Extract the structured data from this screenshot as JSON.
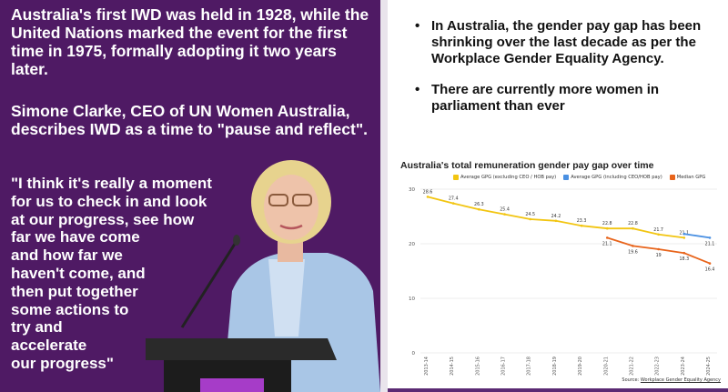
{
  "left": {
    "para1": "Australia's first IWD was held in 1928, while the United Nations marked the event for the first time in 1975, formally adopting it two years later.",
    "para2": "Simone Clarke, CEO of UN Women Australia, describes IWD as a time to \"pause and reflect\".",
    "quote_lines": [
      "\"I think it's really a moment",
      "for us to check in and look",
      "at our progress, see how",
      "far we have come",
      "and how far we",
      "haven't come, and",
      "then put together",
      "some actions to",
      "try and",
      "accelerate",
      "our progress\""
    ]
  },
  "right": {
    "bullets": [
      "In Australia, the gender pay gap has been shrinking over the last decade as per the Workplace Gender Equality Agency.",
      "There are currently more women in parliament than ever"
    ]
  },
  "colors": {
    "purple_bg": "#4f1a64",
    "series_average_excl": "#f2c511",
    "series_average_incl": "#4a90e2",
    "series_median": "#e8641b"
  },
  "chart_data": {
    "type": "line",
    "title": "Australia's total remuneration gender pay gap over time",
    "source_prefix": "Source: ",
    "source_link": "Workplace Gender Equality Agency",
    "ylim": [
      0,
      30
    ],
    "yticks": [
      0,
      10,
      20,
      30
    ],
    "x": [
      "2013-14",
      "2014-15",
      "2015-16",
      "2016-17",
      "2017-18",
      "2018-19",
      "2019-20",
      "2020-21",
      "2021-22",
      "2022-23",
      "2023-24",
      "2024-25"
    ],
    "series": [
      {
        "name": "Average GPG (excluding CEO / HOB pay)",
        "values": [
          28.6,
          27.4,
          26.3,
          25.4,
          24.5,
          24.2,
          23.3,
          22.8,
          22.8,
          21.7,
          21.1,
          null
        ],
        "labels": [
          "28.6",
          "27.4",
          "26.3",
          "25.4",
          "24.5",
          "24.2",
          "23.3",
          "22.8",
          "22.8",
          "21.7",
          "21.1",
          ""
        ]
      },
      {
        "name": "Average GPG (including CEO/HOB pay)",
        "values": [
          null,
          null,
          null,
          null,
          null,
          null,
          null,
          null,
          null,
          null,
          21.8,
          21.1
        ],
        "labels": [
          "",
          "",
          "",
          "",
          "",
          "",
          "",
          "",
          "",
          "",
          "",
          "21.1"
        ]
      },
      {
        "name": "Median GPG",
        "values": [
          null,
          null,
          null,
          null,
          null,
          null,
          null,
          21.1,
          19.6,
          19,
          18.3,
          16.4
        ],
        "labels": [
          "",
          "",
          "",
          "",
          "",
          "",
          "",
          "21.1",
          "19.6",
          "19",
          "18.3",
          "16.4"
        ]
      }
    ]
  }
}
